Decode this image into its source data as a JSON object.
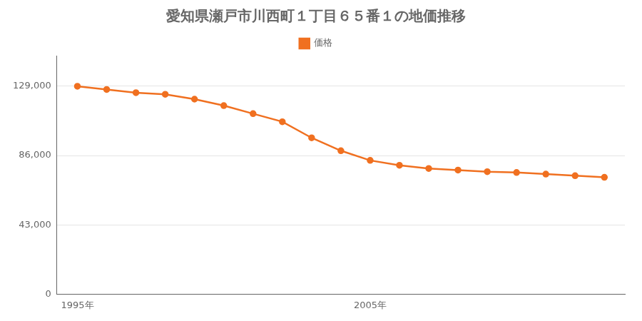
{
  "chart_data": {
    "type": "line",
    "title": "愛知県瀬戸市川西町１丁目６５番１の地価推移",
    "x": [
      1995,
      1996,
      1997,
      1998,
      1999,
      2000,
      2001,
      2002,
      2003,
      2004,
      2005,
      2006,
      2007,
      2008,
      2009,
      2010,
      2011,
      2012,
      2013
    ],
    "series": [
      {
        "name": "価格",
        "color": "#f07020",
        "marker": "circle",
        "values": [
          129000,
          127000,
          125000,
          124000,
          121000,
          117000,
          112000,
          107000,
          97000,
          89000,
          83000,
          80000,
          78000,
          77000,
          76000,
          75500,
          74500,
          73500,
          72500
        ]
      }
    ],
    "xlim": [
      1994.3,
      2013.7
    ],
    "xticks": [
      {
        "value": 1995,
        "label": "1995年"
      },
      {
        "value": 2005,
        "label": "2005年"
      }
    ],
    "ylim": [
      0,
      148000
    ],
    "yticks": [
      0,
      {
        "value": 43000,
        "label": "43,000"
      },
      {
        "value": 86000,
        "label": "86,000"
      },
      {
        "value": 129000,
        "label": "129,000"
      }
    ],
    "grid": "y",
    "legend": "top"
  }
}
